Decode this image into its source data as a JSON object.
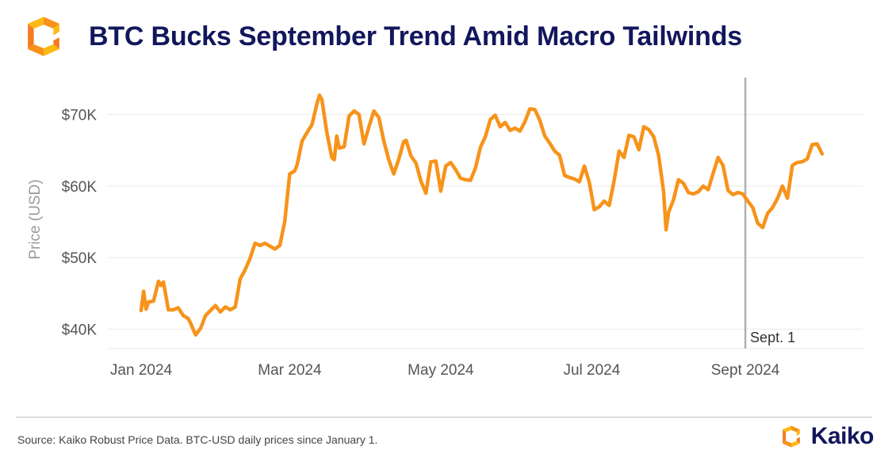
{
  "header": {
    "logo_icon": "kaiko-logo-icon",
    "title": "BTC Bucks September Trend Amid Macro Tailwinds"
  },
  "colors": {
    "accent": "#F7931A",
    "title": "#12175C",
    "grid": "#EAEAEA",
    "marker": "#B0B0B0",
    "tick": "#555555",
    "axis_label": "#9A9A9A"
  },
  "chart_data": {
    "type": "line",
    "title": "BTC Bucks September Trend Amid Macro Tailwinds",
    "xlabel": "",
    "ylabel": "Price (USD)",
    "xlim": [
      0,
      276
    ],
    "ylim": [
      37500,
      74500
    ],
    "x_ticks": [
      {
        "day": 0,
        "label": "Jan 2024"
      },
      {
        "day": 60,
        "label": "Mar 2024"
      },
      {
        "day": 121,
        "label": "May 2024"
      },
      {
        "day": 182,
        "label": "Jul 2024"
      },
      {
        "day": 244,
        "label": "Sept 2024"
      }
    ],
    "y_ticks": [
      {
        "value": 40000,
        "label": "$40K"
      },
      {
        "value": 50000,
        "label": "$50K"
      },
      {
        "value": 60000,
        "label": "$60K"
      },
      {
        "value": 70000,
        "label": "$70K"
      }
    ],
    "grid": true,
    "annotations": [
      {
        "type": "vertical-line",
        "day": 244,
        "label": "Sept. 1"
      }
    ],
    "series": [
      {
        "name": "BTC-USD",
        "x_unit": "days since Jan 1, 2024",
        "points": [
          [
            0,
            42600
          ],
          [
            1,
            45300
          ],
          [
            2,
            42800
          ],
          [
            3,
            43800
          ],
          [
            5,
            43900
          ],
          [
            7,
            46700
          ],
          [
            8,
            46100
          ],
          [
            9,
            46600
          ],
          [
            11,
            42700
          ],
          [
            13,
            42700
          ],
          [
            15,
            43000
          ],
          [
            17,
            41900
          ],
          [
            19,
            41500
          ],
          [
            20,
            40800
          ],
          [
            22,
            39200
          ],
          [
            24,
            40100
          ],
          [
            26,
            41900
          ],
          [
            28,
            42600
          ],
          [
            30,
            43300
          ],
          [
            32,
            42400
          ],
          [
            34,
            43100
          ],
          [
            36,
            42700
          ],
          [
            38,
            43100
          ],
          [
            40,
            47000
          ],
          [
            42,
            48300
          ],
          [
            44,
            49900
          ],
          [
            46,
            52000
          ],
          [
            48,
            51700
          ],
          [
            50,
            52000
          ],
          [
            52,
            51600
          ],
          [
            54,
            51200
          ],
          [
            56,
            51700
          ],
          [
            58,
            55000
          ],
          [
            60,
            61700
          ],
          [
            62,
            62100
          ],
          [
            63,
            63000
          ],
          [
            65,
            66300
          ],
          [
            67,
            67500
          ],
          [
            69,
            68600
          ],
          [
            71,
            71500
          ],
          [
            72,
            72700
          ],
          [
            73,
            72100
          ],
          [
            75,
            67500
          ],
          [
            77,
            64000
          ],
          [
            78,
            63700
          ],
          [
            79,
            67000
          ],
          [
            80,
            65300
          ],
          [
            82,
            65500
          ],
          [
            84,
            69800
          ],
          [
            86,
            70500
          ],
          [
            88,
            70000
          ],
          [
            90,
            65900
          ],
          [
            92,
            68300
          ],
          [
            94,
            70500
          ],
          [
            96,
            69600
          ],
          [
            98,
            66300
          ],
          [
            100,
            63700
          ],
          [
            102,
            61700
          ],
          [
            104,
            63700
          ],
          [
            106,
            66200
          ],
          [
            107,
            66400
          ],
          [
            109,
            64200
          ],
          [
            111,
            63200
          ],
          [
            113,
            60700
          ],
          [
            115,
            59000
          ],
          [
            117,
            63400
          ],
          [
            119,
            63500
          ],
          [
            121,
            59300
          ],
          [
            123,
            62800
          ],
          [
            125,
            63300
          ],
          [
            127,
            62300
          ],
          [
            129,
            61100
          ],
          [
            131,
            60900
          ],
          [
            133,
            60800
          ],
          [
            135,
            62500
          ],
          [
            137,
            65400
          ],
          [
            139,
            66900
          ],
          [
            141,
            69300
          ],
          [
            143,
            69900
          ],
          [
            145,
            68300
          ],
          [
            147,
            68900
          ],
          [
            149,
            67800
          ],
          [
            151,
            68100
          ],
          [
            153,
            67700
          ],
          [
            155,
            69000
          ],
          [
            157,
            70800
          ],
          [
            159,
            70700
          ],
          [
            161,
            69200
          ],
          [
            163,
            67000
          ],
          [
            165,
            66000
          ],
          [
            167,
            64900
          ],
          [
            169,
            64300
          ],
          [
            171,
            61500
          ],
          [
            173,
            61200
          ],
          [
            175,
            61000
          ],
          [
            177,
            60600
          ],
          [
            179,
            62800
          ],
          [
            181,
            60500
          ],
          [
            183,
            56700
          ],
          [
            185,
            57100
          ],
          [
            187,
            57900
          ],
          [
            189,
            57300
          ],
          [
            191,
            60700
          ],
          [
            193,
            64900
          ],
          [
            195,
            64000
          ],
          [
            197,
            67100
          ],
          [
            199,
            66900
          ],
          [
            201,
            65100
          ],
          [
            203,
            68300
          ],
          [
            205,
            67900
          ],
          [
            207,
            66900
          ],
          [
            209,
            64300
          ],
          [
            211,
            59200
          ],
          [
            212,
            53900
          ],
          [
            213,
            56300
          ],
          [
            215,
            58100
          ],
          [
            217,
            60900
          ],
          [
            219,
            60400
          ],
          [
            221,
            59100
          ],
          [
            223,
            58900
          ],
          [
            225,
            59200
          ],
          [
            227,
            60000
          ],
          [
            229,
            59500
          ],
          [
            231,
            61800
          ],
          [
            233,
            64000
          ],
          [
            235,
            62900
          ],
          [
            237,
            59400
          ],
          [
            239,
            58800
          ],
          [
            241,
            59100
          ],
          [
            243,
            58900
          ],
          [
            245,
            57900
          ],
          [
            247,
            57000
          ],
          [
            249,
            54800
          ],
          [
            251,
            54200
          ],
          [
            253,
            56200
          ],
          [
            255,
            57000
          ],
          [
            257,
            58300
          ],
          [
            259,
            60000
          ],
          [
            261,
            58300
          ],
          [
            263,
            62900
          ],
          [
            265,
            63300
          ],
          [
            267,
            63400
          ],
          [
            269,
            63800
          ],
          [
            271,
            65800
          ],
          [
            273,
            65900
          ],
          [
            275,
            64500
          ]
        ]
      }
    ]
  },
  "footer": {
    "source": "Source: Kaiko Robust Price Data. BTC-USD daily prices since January 1.",
    "brand_icon": "kaiko-logo-icon",
    "brand": "Kaiko"
  }
}
